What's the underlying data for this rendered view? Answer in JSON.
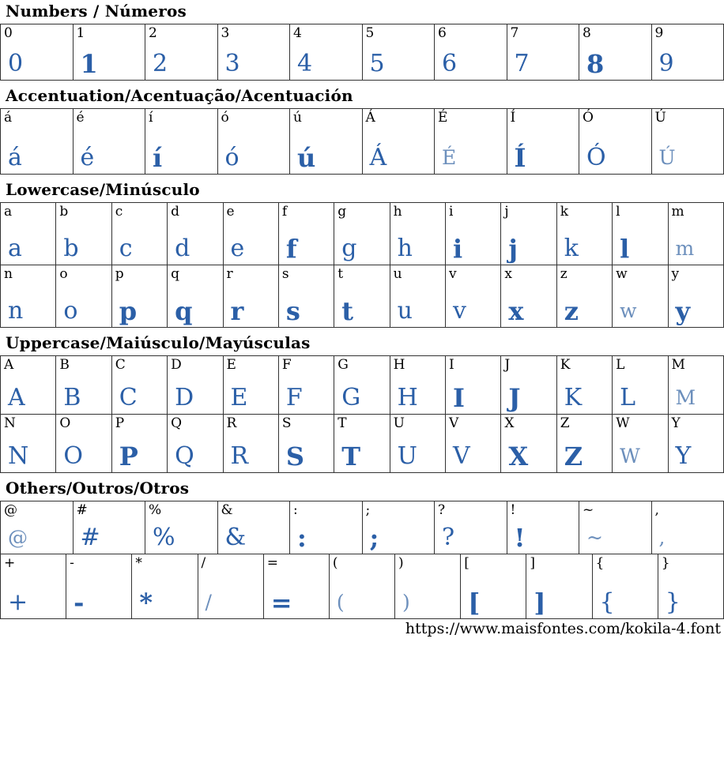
{
  "colors": {
    "glyph_blue": "#2b5fa7",
    "glyph_blue_light": "#6c8fbc",
    "border": "#333333",
    "background": "#ffffff",
    "text": "#000000"
  },
  "sections": [
    {
      "title": "Numbers / Números",
      "rows": [
        [
          {
            "ch": "0",
            "v": "n"
          },
          {
            "ch": "1",
            "v": "b"
          },
          {
            "ch": "2",
            "v": "n"
          },
          {
            "ch": "3",
            "v": "n"
          },
          {
            "ch": "4",
            "v": "n"
          },
          {
            "ch": "5",
            "v": "n"
          },
          {
            "ch": "6",
            "v": "n"
          },
          {
            "ch": "7",
            "v": "n"
          },
          {
            "ch": "8",
            "v": "b"
          },
          {
            "ch": "9",
            "v": "n"
          }
        ]
      ]
    },
    {
      "title": "Accentuation/Acentuação/Acentuación",
      "rows": [
        [
          {
            "ch": "á",
            "v": "n"
          },
          {
            "ch": "é",
            "v": "n"
          },
          {
            "ch": "í",
            "v": "b"
          },
          {
            "ch": "ó",
            "v": "n"
          },
          {
            "ch": "ú",
            "v": "b"
          },
          {
            "ch": "Á",
            "v": "n"
          },
          {
            "ch": "É",
            "v": "l"
          },
          {
            "ch": "Í",
            "v": "b"
          },
          {
            "ch": "Ó",
            "v": "n"
          },
          {
            "ch": "Ú",
            "v": "l"
          }
        ]
      ]
    },
    {
      "title": "Lowercase/Minúsculo",
      "rows": [
        [
          {
            "ch": "a",
            "v": "n"
          },
          {
            "ch": "b",
            "v": "n"
          },
          {
            "ch": "c",
            "v": "n"
          },
          {
            "ch": "d",
            "v": "n"
          },
          {
            "ch": "e",
            "v": "n"
          },
          {
            "ch": "f",
            "v": "b"
          },
          {
            "ch": "g",
            "v": "n"
          },
          {
            "ch": "h",
            "v": "n"
          },
          {
            "ch": "i",
            "v": "b"
          },
          {
            "ch": "j",
            "v": "b"
          },
          {
            "ch": "k",
            "v": "n"
          },
          {
            "ch": "l",
            "v": "b"
          },
          {
            "ch": "m",
            "v": "l"
          }
        ],
        [
          {
            "ch": "n",
            "v": "n"
          },
          {
            "ch": "o",
            "v": "n"
          },
          {
            "ch": "p",
            "v": "b"
          },
          {
            "ch": "q",
            "v": "b"
          },
          {
            "ch": "r",
            "v": "b"
          },
          {
            "ch": "s",
            "v": "b"
          },
          {
            "ch": "t",
            "v": "b"
          },
          {
            "ch": "u",
            "v": "n"
          },
          {
            "ch": "v",
            "v": "n"
          },
          {
            "ch": "x",
            "v": "b"
          },
          {
            "ch": "z",
            "v": "b"
          },
          {
            "ch": "w",
            "v": "l"
          },
          {
            "ch": "y",
            "v": "b"
          }
        ]
      ]
    },
    {
      "title": "Uppercase/Maiúsculo/Mayúsculas",
      "rows": [
        [
          {
            "ch": "A",
            "v": "n"
          },
          {
            "ch": "B",
            "v": "n"
          },
          {
            "ch": "C",
            "v": "n"
          },
          {
            "ch": "D",
            "v": "n"
          },
          {
            "ch": "E",
            "v": "n"
          },
          {
            "ch": "F",
            "v": "n"
          },
          {
            "ch": "G",
            "v": "n"
          },
          {
            "ch": "H",
            "v": "n"
          },
          {
            "ch": "I",
            "v": "b"
          },
          {
            "ch": "J",
            "v": "b"
          },
          {
            "ch": "K",
            "v": "n"
          },
          {
            "ch": "L",
            "v": "n"
          },
          {
            "ch": "M",
            "v": "l"
          }
        ],
        [
          {
            "ch": "N",
            "v": "n"
          },
          {
            "ch": "O",
            "v": "n"
          },
          {
            "ch": "P",
            "v": "b"
          },
          {
            "ch": "Q",
            "v": "n"
          },
          {
            "ch": "R",
            "v": "n"
          },
          {
            "ch": "S",
            "v": "b"
          },
          {
            "ch": "T",
            "v": "b"
          },
          {
            "ch": "U",
            "v": "n"
          },
          {
            "ch": "V",
            "v": "n"
          },
          {
            "ch": "X",
            "v": "b"
          },
          {
            "ch": "Z",
            "v": "b"
          },
          {
            "ch": "W",
            "v": "l"
          },
          {
            "ch": "Y",
            "v": "n"
          }
        ]
      ]
    },
    {
      "title": "Others/Outros/Otros",
      "rows": [
        [
          {
            "ch": "@",
            "v": "l"
          },
          {
            "ch": "#",
            "v": "n"
          },
          {
            "ch": "%",
            "v": "n"
          },
          {
            "ch": "&",
            "v": "n"
          },
          {
            "ch": ":",
            "v": "b"
          },
          {
            "ch": ";",
            "v": "b"
          },
          {
            "ch": "?",
            "v": "n"
          },
          {
            "ch": "!",
            "v": "b"
          },
          {
            "ch": "~",
            "v": "l"
          },
          {
            "ch": ",",
            "v": "l"
          }
        ],
        [
          {
            "ch": "+",
            "v": "n"
          },
          {
            "ch": "-",
            "v": "b"
          },
          {
            "ch": "*",
            "v": "b"
          },
          {
            "ch": "/",
            "v": "l"
          },
          {
            "ch": "=",
            "v": "b"
          },
          {
            "ch": "(",
            "v": "l"
          },
          {
            "ch": ")",
            "v": "l"
          },
          {
            "ch": "[",
            "v": "b"
          },
          {
            "ch": "]",
            "v": "b"
          },
          {
            "ch": "{",
            "v": "n"
          },
          {
            "ch": "}",
            "v": "n"
          }
        ]
      ]
    }
  ],
  "footer": {
    "url": "https://www.maisfontes.com/kokila-4.font"
  }
}
